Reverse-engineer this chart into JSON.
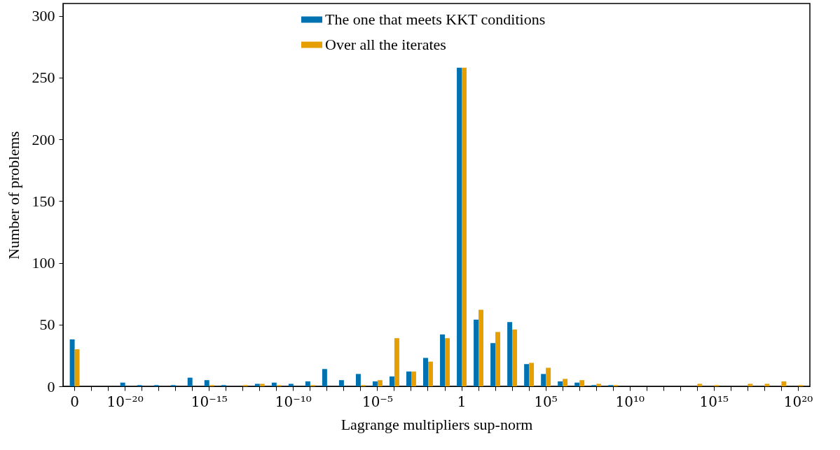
{
  "chart_data": {
    "type": "bar",
    "xlabel": "Lagrange multipliers sup-norm",
    "ylabel": "Number of problems",
    "categories": [
      "0",
      null,
      null,
      "10⁻²⁰",
      null,
      null,
      null,
      null,
      "10⁻¹⁵",
      null,
      null,
      null,
      null,
      "10⁻¹⁰",
      null,
      null,
      null,
      null,
      "10⁻⁵",
      null,
      null,
      null,
      null,
      "1",
      null,
      null,
      null,
      null,
      "10⁵",
      null,
      null,
      null,
      null,
      "10¹⁰",
      null,
      null,
      null,
      null,
      "10¹⁵",
      null,
      null,
      null,
      null,
      "10²⁰"
    ],
    "series": [
      {
        "name": "The one that meets KKT conditions",
        "color": "#0072b2",
        "values": [
          38,
          0,
          0,
          3,
          1,
          1,
          1,
          7,
          5,
          1,
          0,
          2,
          3,
          2,
          4,
          14,
          5,
          10,
          4,
          8,
          12,
          23,
          42,
          258,
          54,
          35,
          52,
          18,
          10,
          4,
          3,
          1,
          1,
          0,
          0,
          0,
          0,
          0,
          0,
          0,
          0,
          0,
          0,
          0
        ]
      },
      {
        "name": "Over all the iterates",
        "color": "#e69f00",
        "values": [
          30,
          0,
          0,
          0,
          0,
          0,
          0,
          0,
          1,
          0,
          1,
          2,
          1,
          0,
          1,
          0,
          0,
          1,
          5,
          39,
          12,
          20,
          39,
          258,
          62,
          44,
          46,
          19,
          15,
          6,
          5,
          2,
          1,
          0,
          0,
          0,
          0,
          2,
          1,
          0,
          2,
          2,
          4,
          1
        ]
      }
    ],
    "ylim": [
      0,
      310
    ],
    "yticks": [
      0,
      50,
      100,
      150,
      200,
      250,
      300
    ],
    "grid": false,
    "legend": "top"
  }
}
